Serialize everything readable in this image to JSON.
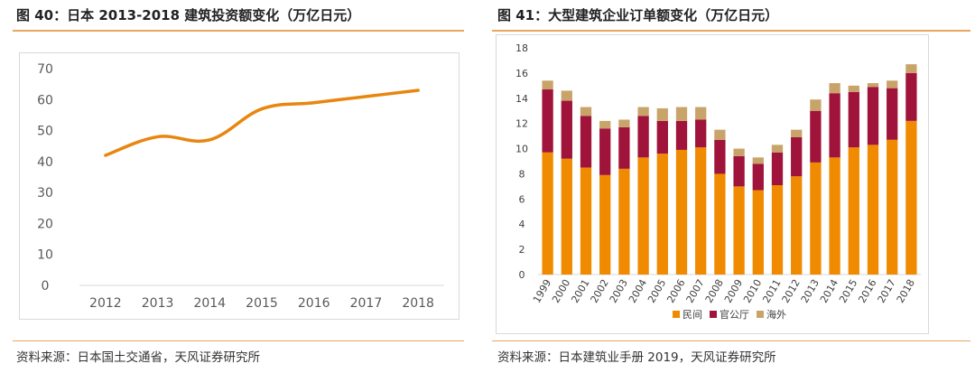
{
  "left": {
    "figure_title": "图 40：日本 2013-2018 建筑投资额变化（万亿日元）",
    "source": "资料来源：日本国土交通省，天风证券研究所"
  },
  "right": {
    "figure_title": "图 41：大型建筑企业订单额变化（万亿日元）",
    "source": "资料来源：日本建筑业手册 2019，天风证券研究所"
  },
  "colors": {
    "line": "#e8860f",
    "private": "#f08a00",
    "government": "#a0133a",
    "overseas": "#c9a46a",
    "rule": "#e8a661"
  },
  "chart_data": [
    {
      "type": "line",
      "title": "",
      "categories": [
        "2012",
        "2013",
        "2014",
        "2015",
        "2016",
        "2017",
        "2018"
      ],
      "values": [
        42,
        48,
        47,
        57,
        59,
        61,
        63
      ],
      "ylim": [
        0,
        70
      ],
      "yticks": [
        "0",
        "10",
        "20",
        "30",
        "40",
        "50",
        "60",
        "70"
      ],
      "grid": false,
      "xlabel": "",
      "ylabel": ""
    },
    {
      "type": "bar",
      "stacked": true,
      "title": "",
      "categories": [
        "1999",
        "2000",
        "2001",
        "2002",
        "2003",
        "2004",
        "2005",
        "2006",
        "2007",
        "2008",
        "2009",
        "2010",
        "2011",
        "2012",
        "2013",
        "2014",
        "2015",
        "2016",
        "2017",
        "2018"
      ],
      "series": [
        {
          "name": "民间",
          "values": [
            9.7,
            9.2,
            8.5,
            7.9,
            8.4,
            9.3,
            9.6,
            9.9,
            10.1,
            8.0,
            7.0,
            6.7,
            7.1,
            7.8,
            8.9,
            9.3,
            10.1,
            10.3,
            10.7,
            12.2
          ]
        },
        {
          "name": "官公厅",
          "values": [
            5.0,
            4.6,
            4.1,
            3.7,
            3.3,
            3.3,
            2.6,
            2.3,
            2.2,
            2.7,
            2.4,
            2.1,
            2.6,
            3.1,
            4.1,
            5.1,
            4.4,
            4.6,
            4.1,
            3.8
          ]
        },
        {
          "name": "海外",
          "values": [
            0.7,
            0.8,
            0.7,
            0.6,
            0.6,
            0.7,
            1.0,
            1.1,
            1.0,
            0.8,
            0.6,
            0.5,
            0.6,
            0.6,
            0.9,
            0.8,
            0.5,
            0.3,
            0.6,
            0.7
          ]
        }
      ],
      "ylim": [
        0,
        18
      ],
      "yticks": [
        "0",
        "2",
        "4",
        "6",
        "8",
        "10",
        "12",
        "14",
        "16",
        "18"
      ],
      "legend_position": "bottom",
      "grid": false,
      "xlabel": "",
      "ylabel": ""
    }
  ]
}
